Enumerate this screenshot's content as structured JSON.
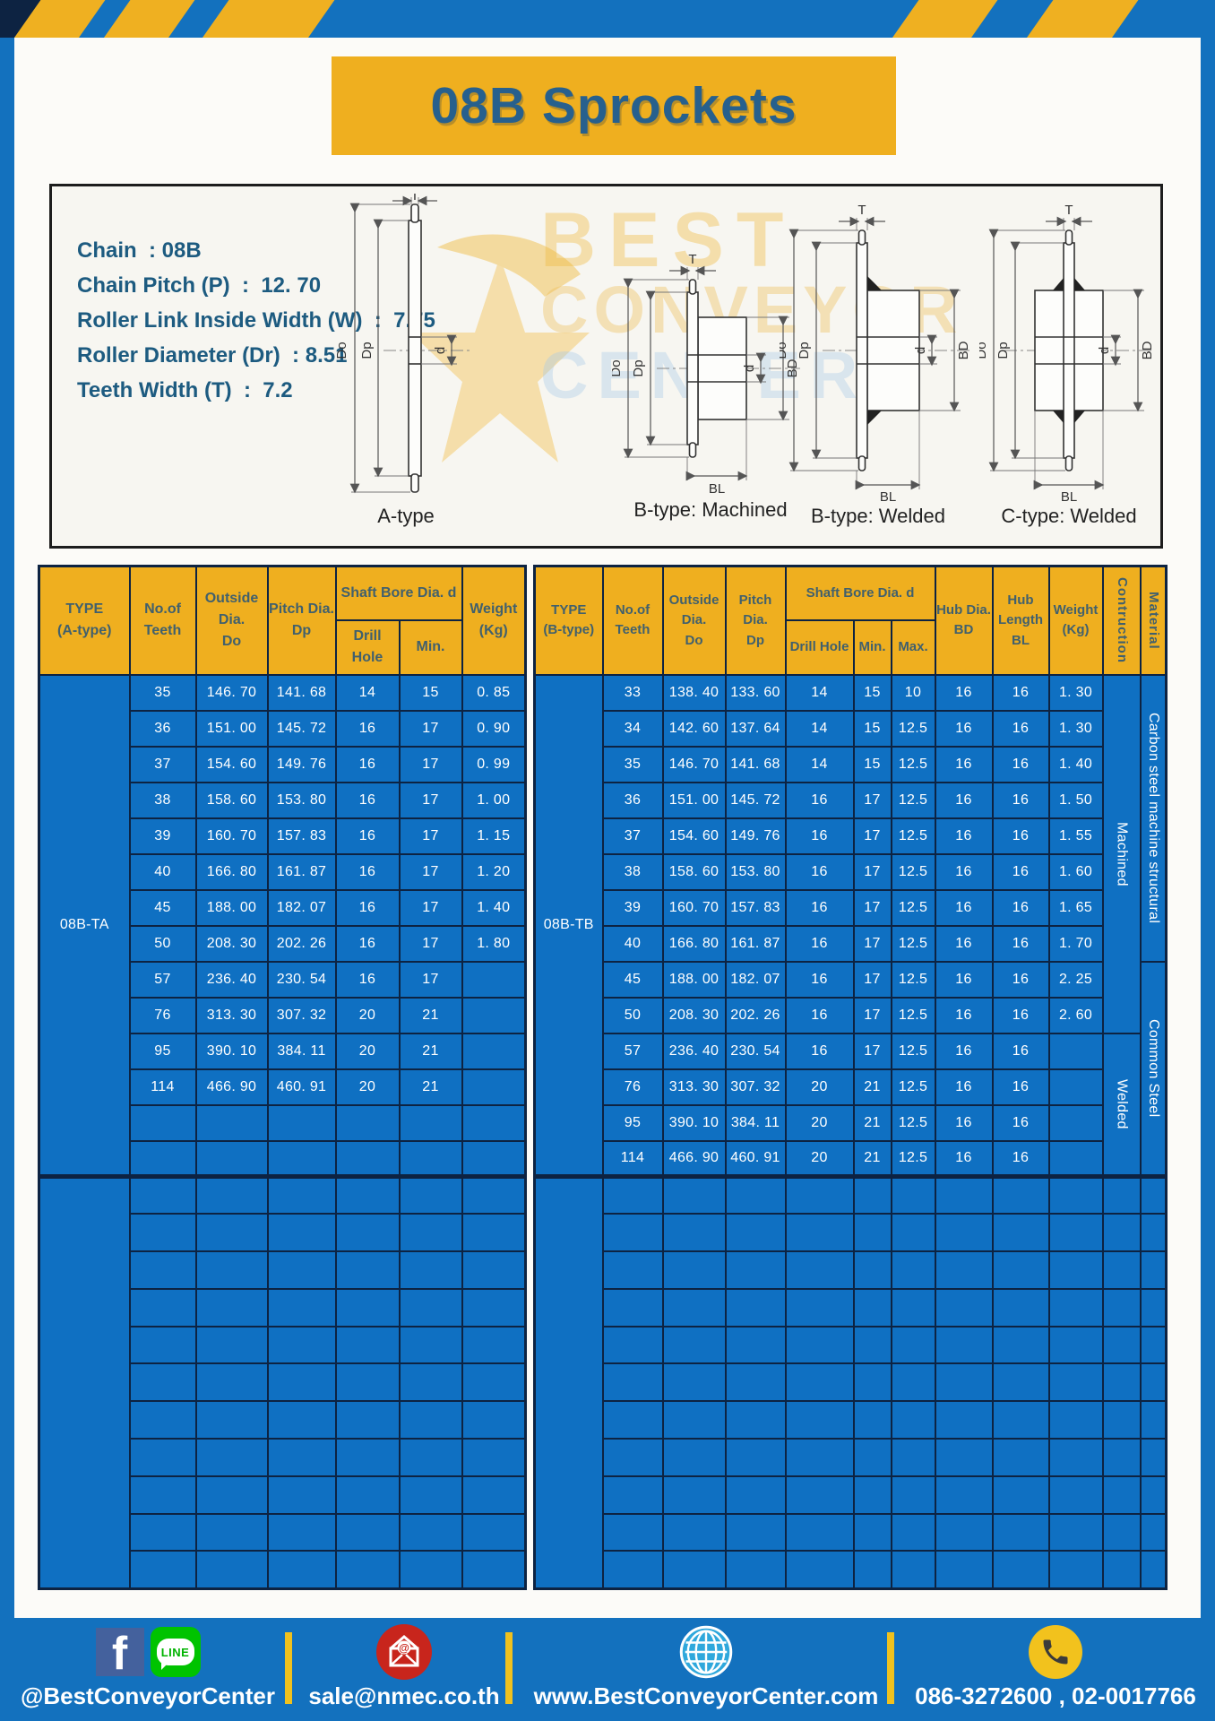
{
  "title": "08B Sprockets",
  "specs": {
    "chain": "Chain  : 08B",
    "pitch": "Chain Pitch (P)  :  12. 70",
    "roller_width": "Roller Link Inside Width (W)  :  7.75",
    "roller_dia": "Roller Diameter (Dr)  : 8.51",
    "teeth_width": "Teeth Width (T)  :  7.2"
  },
  "diagram": {
    "watermark": [
      "BEST",
      "CONVEYOR",
      "CENTER"
    ],
    "dims": {
      "T": "T",
      "Do": "Do",
      "Dp": "Dp",
      "d": "d",
      "BD": "BD",
      "BL": "BL"
    },
    "captions": [
      "A-type",
      "B-type: Machined",
      "B-type: Welded",
      "C-type: Welded"
    ]
  },
  "table_a": {
    "header": {
      "type": "TYPE\n(A-type)",
      "teeth": "No.of\nTeeth",
      "outside": "Outside\nDia.\nDo",
      "pitch": "Pitch Dia.\nDp",
      "shaft": "Shaft Bore Dia. d",
      "drill": "Drill Hole",
      "min": "Min.",
      "weight": "Weight\n(Kg)"
    },
    "type_label": "08B-TA",
    "rows": [
      [
        "35",
        "146. 70",
        "141. 68",
        "14",
        "15",
        "0. 85"
      ],
      [
        "36",
        "151. 00",
        "145. 72",
        "16",
        "17",
        "0. 90"
      ],
      [
        "37",
        "154. 60",
        "149. 76",
        "16",
        "17",
        "0. 99"
      ],
      [
        "38",
        "158. 60",
        "153. 80",
        "16",
        "17",
        "1. 00"
      ],
      [
        "39",
        "160. 70",
        "157. 83",
        "16",
        "17",
        "1. 15"
      ],
      [
        "40",
        "166. 80",
        "161. 87",
        "16",
        "17",
        "1. 20"
      ],
      [
        "45",
        "188. 00",
        "182. 07",
        "16",
        "17",
        "1. 40"
      ],
      [
        "50",
        "208. 30",
        "202. 26",
        "16",
        "17",
        "1. 80"
      ],
      [
        "57",
        "236. 40",
        "230. 54",
        "16",
        "17",
        ""
      ],
      [
        "76",
        "313. 30",
        "307. 32",
        "20",
        "21",
        ""
      ],
      [
        "95",
        "390. 10",
        "384. 11",
        "20",
        "21",
        ""
      ],
      [
        "114",
        "466. 90",
        "460. 91",
        "20",
        "21",
        ""
      ],
      [
        "",
        "",
        "",
        "",
        "",
        ""
      ],
      [
        "",
        "",
        "",
        "",
        "",
        ""
      ]
    ],
    "section2_rows": 11,
    "section2_cols": 6
  },
  "table_b": {
    "header": {
      "type": "TYPE\n(B-type)",
      "teeth": "No.of\nTeeth",
      "outside": "Outside\nDia.\nDo",
      "pitch": "Pitch Dia.\nDp",
      "shaft": "Shaft Bore Dia. d",
      "drill": "Drill Hole",
      "min": "Min.",
      "max": "Max.",
      "hub_dia": "Hub Dia.\nBD",
      "hub_len": "Hub\nLength\nBL",
      "weight": "Weight\n(Kg)",
      "construction": "Contruction",
      "material": "Material"
    },
    "type_label": "08B-TB",
    "rows": [
      [
        "33",
        "138. 40",
        "133. 60",
        "14",
        "15",
        "10",
        "16",
        "16",
        "1. 30"
      ],
      [
        "34",
        "142. 60",
        "137. 64",
        "14",
        "15",
        "12.5",
        "16",
        "16",
        "1. 30"
      ],
      [
        "35",
        "146. 70",
        "141. 68",
        "14",
        "15",
        "12.5",
        "16",
        "16",
        "1. 40"
      ],
      [
        "36",
        "151. 00",
        "145. 72",
        "16",
        "17",
        "12.5",
        "16",
        "16",
        "1. 50"
      ],
      [
        "37",
        "154. 60",
        "149. 76",
        "16",
        "17",
        "12.5",
        "16",
        "16",
        "1. 55"
      ],
      [
        "38",
        "158. 60",
        "153. 80",
        "16",
        "17",
        "12.5",
        "16",
        "16",
        "1. 60"
      ],
      [
        "39",
        "160. 70",
        "157. 83",
        "16",
        "17",
        "12.5",
        "16",
        "16",
        "1. 65"
      ],
      [
        "40",
        "166. 80",
        "161. 87",
        "16",
        "17",
        "12.5",
        "16",
        "16",
        "1. 70"
      ],
      [
        "45",
        "188. 00",
        "182. 07",
        "16",
        "17",
        "12.5",
        "16",
        "16",
        "2. 25"
      ],
      [
        "50",
        "208. 30",
        "202. 26",
        "16",
        "17",
        "12.5",
        "16",
        "16",
        "2. 60"
      ],
      [
        "57",
        "236. 40",
        "230. 54",
        "16",
        "17",
        "12.5",
        "16",
        "16",
        ""
      ],
      [
        "76",
        "313. 30",
        "307. 32",
        "20",
        "21",
        "12.5",
        "16",
        "16",
        ""
      ],
      [
        "95",
        "390. 10",
        "384. 11",
        "20",
        "21",
        "12.5",
        "16",
        "16",
        ""
      ],
      [
        "114",
        "466. 90",
        "460. 91",
        "20",
        "21",
        "12.5",
        "16",
        "16",
        ""
      ]
    ],
    "construction_groups": [
      {
        "label": "Machined",
        "span": 10
      },
      {
        "label": "Welded",
        "span": 4
      }
    ],
    "material_groups": [
      {
        "label": "Carbon steel  machine structural",
        "span": 8
      },
      {
        "label": "Common  Steel",
        "span": 6
      }
    ],
    "section2_rows": 11,
    "section2_cols": 11
  },
  "footer": {
    "facebook_label": "f",
    "line_label": "LINE",
    "email_at": "@",
    "social_text": "@BestConveyorCenter",
    "email_text": "sale@nmec.co.th",
    "website_text": "www.BestConveyorCenter.com",
    "phone_text": "086-3272600 , 02-0017766"
  },
  "colors": {
    "frame_blue": "#1371BE",
    "cell_blue": "#0F70C2",
    "header_yellow": "#EFAF1F",
    "grid_navy": "#0D2342",
    "title_text_blue": "#27608D",
    "spec_text_blue": "#1D5B80",
    "email_red": "#C8251C",
    "line_green": "#00C300",
    "facebook_blue": "#44619D",
    "globe_blue": "#2FA8DC",
    "phone_yellow": "#F2C21D"
  }
}
